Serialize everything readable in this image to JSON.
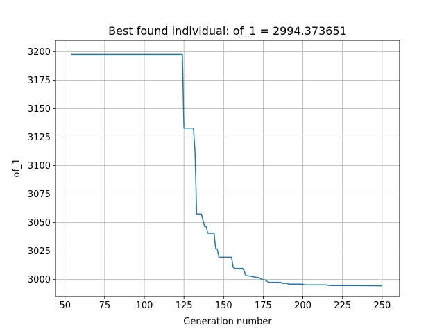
{
  "chart_data": {
    "type": "line",
    "title": "Best found individual: of_1 = 2994.373651",
    "xlabel": "Generation number",
    "ylabel": "of_1",
    "xlim": [
      44,
      261
    ],
    "ylim": [
      2985,
      3210
    ],
    "xticks": [
      50,
      75,
      100,
      125,
      150,
      175,
      200,
      225,
      250
    ],
    "yticks": [
      3000,
      3025,
      3050,
      3075,
      3100,
      3125,
      3150,
      3175,
      3200
    ],
    "grid": true,
    "legend": "none",
    "series": [
      {
        "color": "#1f77b4",
        "x": [
          54,
          124,
          125,
          131,
          132,
          133,
          136,
          137,
          138,
          139,
          140,
          144,
          145,
          146,
          147,
          155,
          156,
          157,
          162,
          163,
          164,
          165,
          171,
          172,
          175,
          176,
          178,
          179,
          186,
          187,
          190,
          191,
          200,
          201,
          215,
          216,
          250
        ],
        "y": [
          3197.6,
          3197.6,
          3132.7,
          3132.7,
          3112,
          3057.4,
          3057.4,
          3052,
          3046.4,
          3046.4,
          3040.5,
          3040.5,
          3026.8,
          3026.8,
          3019.5,
          3019.5,
          3010.8,
          3009.6,
          3009.6,
          3007.5,
          3003.2,
          3003.2,
          3001.6,
          3001.6,
          2999.5,
          2999.5,
          2997.8,
          2997.4,
          2997.4,
          2996.5,
          2996.5,
          2995.8,
          2995.8,
          2995.2,
          2995.2,
          2994.7,
          2994.4
        ]
      }
    ]
  }
}
